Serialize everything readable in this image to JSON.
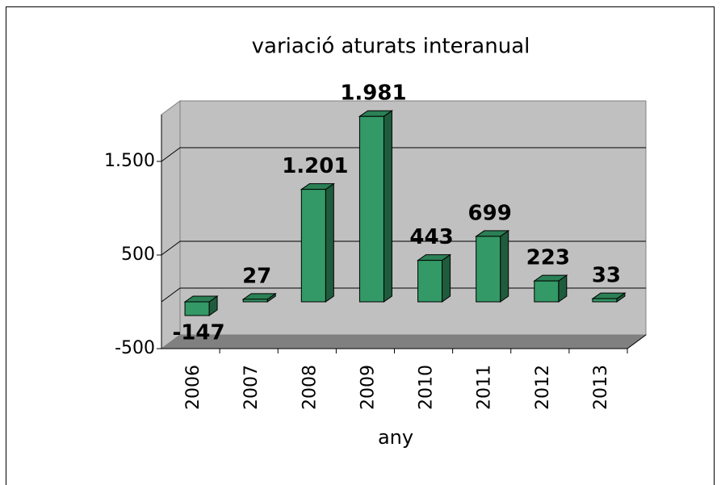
{
  "chart_data": {
    "type": "bar3d",
    "title": "variació aturats interanual",
    "x_label": "any",
    "categories": [
      "2006",
      "2007",
      "2008",
      "2009",
      "2010",
      "2011",
      "2012",
      "2013"
    ],
    "values": [
      -147,
      27,
      1201,
      1981,
      443,
      699,
      223,
      33
    ],
    "value_labels": [
      "-147",
      "27",
      "1.201",
      "1.981",
      "443",
      "699",
      "223",
      "33"
    ],
    "color": "#339966",
    "ylim": [
      -500,
      2000
    ],
    "yticks": [
      -500,
      500,
      {
        "value": 1500,
        "label": "1.500"
      }
    ],
    "grid": true
  }
}
